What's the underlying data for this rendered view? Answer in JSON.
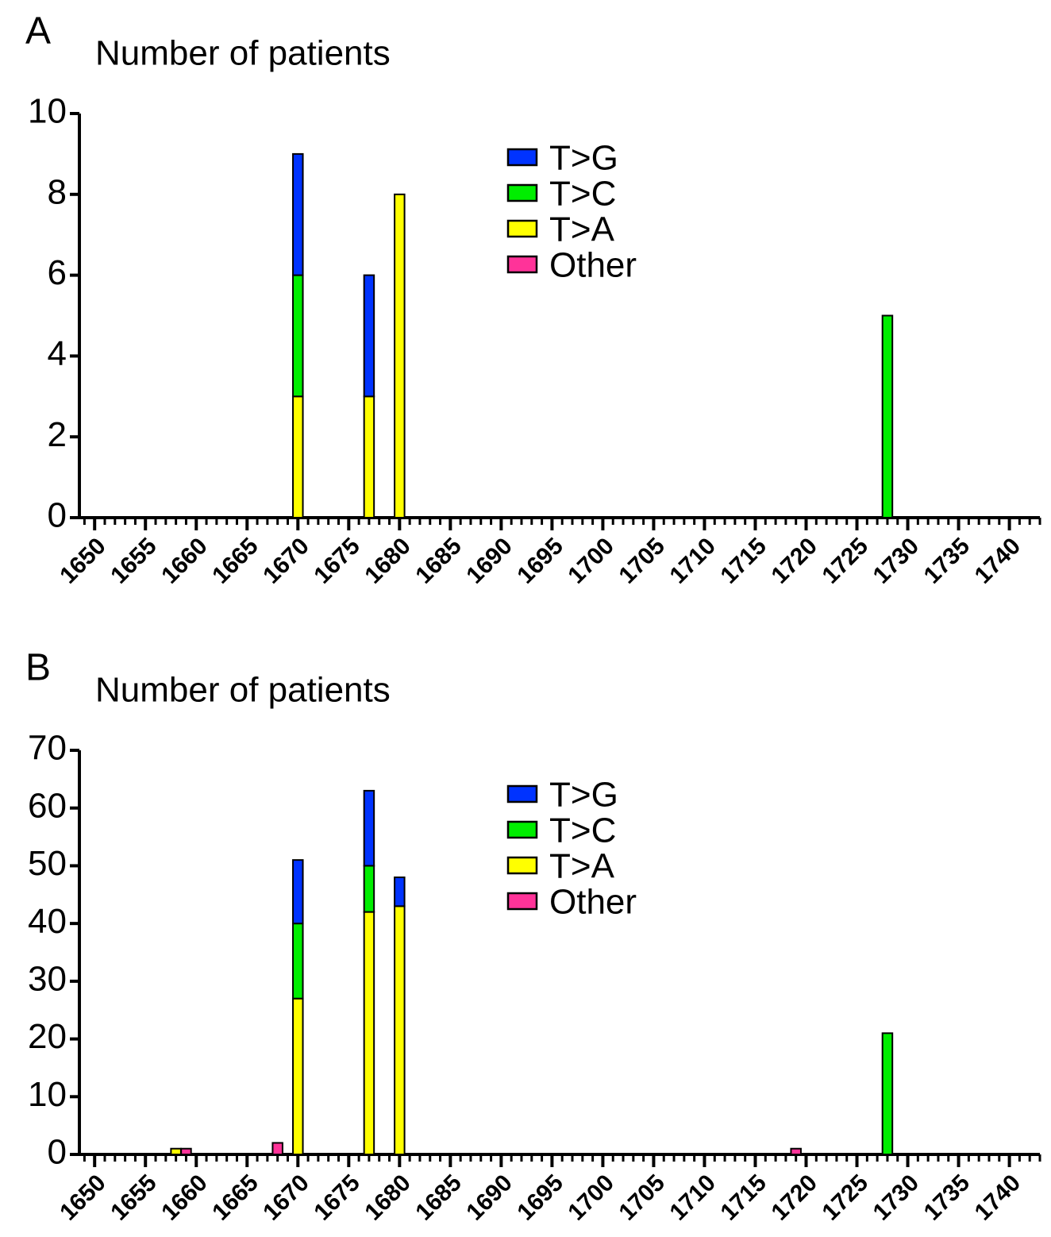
{
  "chart_data": [
    {
      "type": "stacked-bar",
      "panel": "A",
      "title": "Number of patients",
      "xlim": [
        1648.5,
        1743
      ],
      "xticks": [
        1650,
        1655,
        1660,
        1665,
        1670,
        1675,
        1680,
        1685,
        1690,
        1695,
        1700,
        1705,
        1710,
        1715,
        1720,
        1725,
        1730,
        1735,
        1740
      ],
      "x_minor_step": 1,
      "ylim": [
        0,
        10
      ],
      "yticks": [
        0,
        2,
        4,
        6,
        8,
        10
      ],
      "legend": "top-center",
      "series": [
        {
          "name": "T>G",
          "color": "#0033ff",
          "x": [
            1670,
            1677
          ],
          "values": [
            3,
            3
          ]
        },
        {
          "name": "T>C",
          "color": "#00ee00",
          "x": [
            1670,
            1728
          ],
          "values": [
            3,
            5
          ]
        },
        {
          "name": "T>A",
          "color": "#ffff00",
          "x": [
            1670,
            1677,
            1680
          ],
          "values": [
            3,
            3,
            8
          ]
        },
        {
          "name": "Other",
          "color": "#ff3399",
          "x": [],
          "values": []
        }
      ]
    },
    {
      "type": "stacked-bar",
      "panel": "B",
      "title": "Number of patients",
      "xlim": [
        1648.5,
        1743
      ],
      "xticks": [
        1650,
        1655,
        1660,
        1665,
        1670,
        1675,
        1680,
        1685,
        1690,
        1695,
        1700,
        1705,
        1710,
        1715,
        1720,
        1725,
        1730,
        1735,
        1740
      ],
      "x_minor_step": 1,
      "ylim": [
        0,
        70
      ],
      "yticks": [
        0,
        10,
        20,
        30,
        40,
        50,
        60,
        70
      ],
      "legend": "top-center",
      "series": [
        {
          "name": "T>G",
          "color": "#0033ff",
          "x": [
            1670,
            1677,
            1680
          ],
          "values": [
            11,
            13,
            5
          ]
        },
        {
          "name": "T>C",
          "color": "#00ee00",
          "x": [
            1670,
            1677,
            1728
          ],
          "values": [
            13,
            8,
            21
          ]
        },
        {
          "name": "T>A",
          "color": "#ffff00",
          "x": [
            1658,
            1670,
            1677,
            1680
          ],
          "values": [
            1,
            27,
            42,
            43
          ]
        },
        {
          "name": "Other",
          "color": "#ff3399",
          "x": [
            1659,
            1668,
            1719
          ],
          "values": [
            1,
            2,
            1
          ]
        }
      ]
    }
  ]
}
